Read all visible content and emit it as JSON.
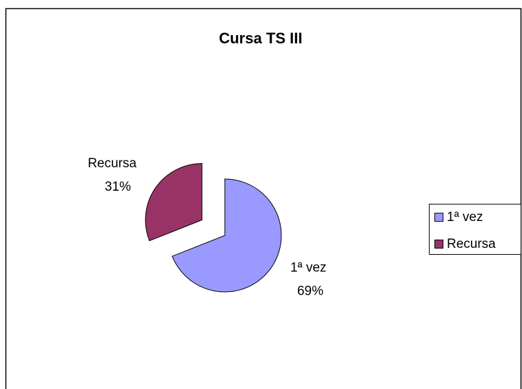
{
  "chart_data": {
    "type": "pie",
    "title": "Cursa TS III",
    "categories": [
      "1ª vez",
      "Recursa"
    ],
    "values": [
      69,
      31
    ],
    "value_labels": [
      "69%",
      "31%"
    ],
    "colors": [
      "#9999FF",
      "#993366"
    ],
    "legend": "right"
  }
}
